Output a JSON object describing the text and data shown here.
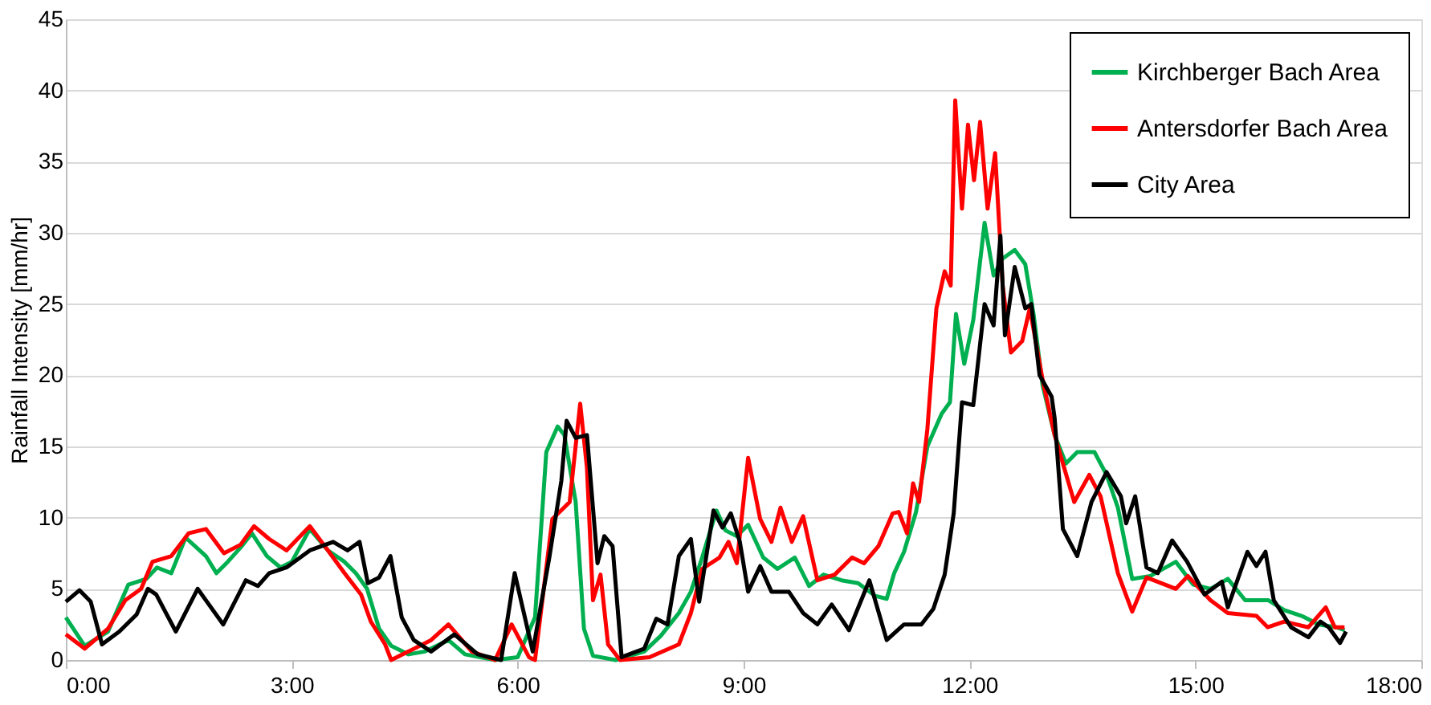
{
  "chart_data": {
    "type": "line",
    "ylabel": "Rainfall Intensity [mm/hr]",
    "xlim": [
      0,
      18
    ],
    "xticks": [
      {
        "value": 0,
        "label": "0:00"
      },
      {
        "value": 3,
        "label": "3:00"
      },
      {
        "value": 6,
        "label": "6:00"
      },
      {
        "value": 9,
        "label": "9:00"
      },
      {
        "value": 12,
        "label": "12:00"
      },
      {
        "value": 15,
        "label": "15:00"
      },
      {
        "value": 18,
        "label": "18:00"
      }
    ],
    "ylim": [
      0,
      45
    ],
    "yticks": [
      0,
      5,
      10,
      15,
      20,
      25,
      30,
      35,
      40,
      45
    ],
    "grid": "y",
    "legend": "top right",
    "marker": "none",
    "line_style": "solid",
    "series": [
      {
        "name": "Kirchberger Bach Area",
        "color": "#00b050",
        "x": [
          0,
          0.25,
          0.56,
          0.83,
          1.07,
          1.21,
          1.4,
          1.59,
          1.86,
          2.0,
          2.15,
          2.32,
          2.47,
          2.67,
          2.85,
          3.0,
          3.24,
          3.48,
          3.7,
          3.85,
          4.0,
          4.16,
          4.32,
          4.55,
          4.77,
          5.08,
          5.3,
          5.7,
          6.0,
          6.23,
          6.38,
          6.53,
          6.62,
          6.77,
          6.88,
          7.0,
          7.3,
          7.68,
          7.9,
          8.14,
          8.3,
          8.45,
          8.64,
          8.76,
          8.91,
          9.06,
          9.26,
          9.45,
          9.68,
          9.87,
          10.06,
          10.3,
          10.52,
          10.75,
          10.9,
          11.0,
          11.13,
          11.29,
          11.44,
          11.63,
          11.74,
          11.82,
          11.93,
          12.05,
          12.2,
          12.32,
          12.44,
          12.6,
          12.74,
          12.85,
          12.97,
          13.13,
          13.28,
          13.43,
          13.66,
          13.82,
          13.97,
          14.16,
          14.4,
          14.74,
          14.97,
          15.2,
          15.43,
          15.66,
          15.97,
          16.18,
          16.41,
          16.64,
          16.87,
          16.98
        ],
        "values": [
          3,
          1,
          2,
          5.3,
          5.7,
          6.5,
          6.1,
          8.6,
          7.3,
          6.1,
          6.9,
          7.9,
          8.9,
          7.3,
          6.5,
          6.9,
          9.2,
          7.7,
          6.9,
          6.1,
          5,
          2.2,
          1,
          0.4,
          0.6,
          1.4,
          0.4,
          0,
          0.2,
          3,
          14.6,
          16.4,
          15.8,
          11.1,
          2.2,
          0.3,
          0,
          0.6,
          1.7,
          3.3,
          4.8,
          7.2,
          10.5,
          9.1,
          8.7,
          9.5,
          7.2,
          6.4,
          7.2,
          5.2,
          6,
          5.6,
          5.4,
          4.5,
          4.3,
          6.1,
          7.6,
          10.4,
          15,
          17.3,
          18.1,
          24.3,
          20.8,
          23.9,
          30.7,
          27,
          28.2,
          28.8,
          27.8,
          24.3,
          19.3,
          15.8,
          13.8,
          14.6,
          14.6,
          13,
          10.7,
          5.7,
          5.9,
          6.9,
          5.3,
          5,
          5.7,
          4.2,
          4.2,
          3.5,
          3.1,
          2.5,
          2.3,
          2.1
        ]
      },
      {
        "name": "Antersdorfer Bach Area",
        "color": "#ff0000",
        "x": [
          0,
          0.25,
          0.56,
          0.79,
          1.0,
          1.15,
          1.4,
          1.63,
          1.86,
          2.1,
          2.32,
          2.5,
          2.7,
          2.93,
          3.24,
          3.48,
          3.7,
          3.92,
          4.05,
          4.24,
          4.32,
          4.55,
          4.85,
          5.08,
          5.39,
          5.7,
          5.92,
          6.15,
          6.23,
          6.46,
          6.69,
          6.83,
          6.92,
          7.0,
          7.1,
          7.2,
          7.36,
          7.75,
          8.14,
          8.3,
          8.45,
          8.68,
          8.8,
          8.91,
          9.06,
          9.22,
          9.37,
          9.49,
          9.64,
          9.79,
          9.98,
          10.21,
          10.44,
          10.6,
          10.79,
          10.98,
          11.06,
          11.17,
          11.25,
          11.33,
          11.44,
          11.56,
          11.67,
          11.75,
          11.81,
          11.9,
          11.98,
          12.06,
          12.14,
          12.24,
          12.34,
          12.44,
          12.55,
          12.7,
          12.8,
          12.97,
          13.13,
          13.24,
          13.39,
          13.59,
          13.74,
          13.97,
          14.16,
          14.35,
          14.74,
          14.9,
          15.2,
          15.43,
          15.81,
          15.96,
          16.18,
          16.5,
          16.73,
          16.85,
          16.98
        ],
        "values": [
          1.8,
          0.8,
          2.2,
          4.2,
          5,
          6.9,
          7.3,
          8.9,
          9.2,
          7.5,
          8.1,
          9.4,
          8.5,
          7.7,
          9.4,
          7.7,
          6.1,
          4.6,
          2.7,
          1.1,
          0,
          0.6,
          1.4,
          2.5,
          0.6,
          0,
          2.5,
          0.2,
          0,
          9.9,
          11.1,
          18,
          13.5,
          4.2,
          6,
          1.1,
          0,
          0.2,
          1.1,
          3.3,
          6.4,
          7.2,
          8.3,
          6.8,
          14.2,
          9.9,
          8.3,
          10.7,
          8.3,
          10.1,
          5.6,
          6,
          7.2,
          6.8,
          8,
          10.3,
          10.4,
          8.9,
          12.4,
          11.1,
          16.2,
          24.7,
          27.3,
          26.3,
          39.3,
          31.7,
          37.6,
          33.7,
          37.8,
          31.7,
          35.6,
          26.3,
          21.6,
          22.4,
          24.7,
          19.7,
          15.8,
          13.8,
          11.1,
          13,
          11.5,
          6.1,
          3.4,
          5.8,
          5,
          5.9,
          4.2,
          3.3,
          3.1,
          2.3,
          2.7,
          2.3,
          3.7,
          2.3,
          2.3
        ]
      },
      {
        "name": "City Area",
        "color": "#000000",
        "x": [
          0,
          0.18,
          0.33,
          0.48,
          0.71,
          0.94,
          1.09,
          1.2,
          1.46,
          1.75,
          2.09,
          2.39,
          2.55,
          2.7,
          2.93,
          3.24,
          3.55,
          3.74,
          3.9,
          4.01,
          4.16,
          4.31,
          4.46,
          4.62,
          4.85,
          5.16,
          5.47,
          5.78,
          5.96,
          6.2,
          6.42,
          6.58,
          6.65,
          6.77,
          6.92,
          7.06,
          7.15,
          7.26,
          7.38,
          7.68,
          7.84,
          7.99,
          8.14,
          8.3,
          8.41,
          8.6,
          8.72,
          8.83,
          8.95,
          9.06,
          9.22,
          9.37,
          9.6,
          9.79,
          9.98,
          10.17,
          10.4,
          10.67,
          10.9,
          11.13,
          11.36,
          11.52,
          11.67,
          11.79,
          11.9,
          12.05,
          12.2,
          12.32,
          12.41,
          12.47,
          12.6,
          12.74,
          12.82,
          12.93,
          13.09,
          13.13,
          13.24,
          13.43,
          13.62,
          13.82,
          14.01,
          14.08,
          14.2,
          14.35,
          14.5,
          14.69,
          14.89,
          15.12,
          15.35,
          15.43,
          15.69,
          15.81,
          15.93,
          16.04,
          16.27,
          16.5,
          16.66,
          16.77,
          16.92,
          17.0
        ],
        "values": [
          4.1,
          4.9,
          4.1,
          1.1,
          2,
          3.2,
          5,
          4.6,
          2,
          5,
          2.5,
          5.6,
          5.2,
          6.1,
          6.5,
          7.7,
          8.3,
          7.7,
          8.3,
          5.4,
          5.8,
          7.3,
          3,
          1.4,
          0.6,
          1.8,
          0.4,
          0,
          6.1,
          0.6,
          7.2,
          12.6,
          16.8,
          15.6,
          15.8,
          6.8,
          8.7,
          8,
          0.2,
          0.8,
          2.9,
          2.5,
          7.3,
          8.5,
          4.1,
          10.5,
          9.3,
          10.3,
          8.3,
          4.8,
          6.6,
          4.8,
          4.8,
          3.3,
          2.5,
          3.9,
          2.1,
          5.6,
          1.4,
          2.5,
          2.5,
          3.6,
          6,
          10.3,
          18.1,
          17.9,
          25,
          23.5,
          29.8,
          22.8,
          27.6,
          24.7,
          25,
          20,
          18.5,
          17,
          9.2,
          7.3,
          11.1,
          13.2,
          11.5,
          9.6,
          11.5,
          6.5,
          6.1,
          8.4,
          6.9,
          4.6,
          5.5,
          3.7,
          7.6,
          6.6,
          7.6,
          4.2,
          2.3,
          1.6,
          2.7,
          2.3,
          1.2,
          2
        ]
      }
    ]
  }
}
